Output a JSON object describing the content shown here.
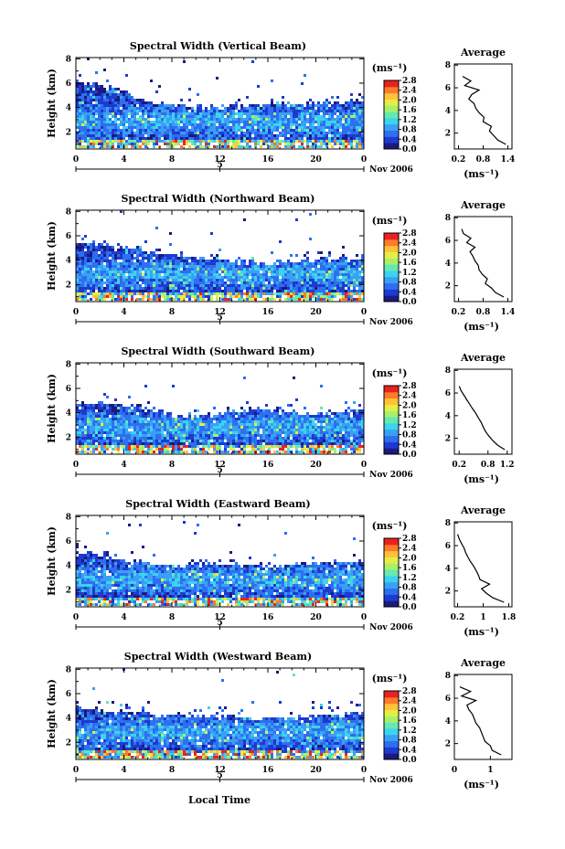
{
  "figure": {
    "xlabel": "Local Time",
    "ylabel": "Height (km)",
    "date_label": "Nov 2006",
    "day_label": "5",
    "colorbar_units": "(ms⁻¹)",
    "avg_title": "Average",
    "avg_units": "(ms⁻¹)",
    "colormap": [
      "#1a1a80",
      "#1e3ad0",
      "#2e6ff0",
      "#3aa0f5",
      "#3cd3ee",
      "#66e8b0",
      "#a8f06a",
      "#e6ee45",
      "#ffc23a",
      "#ff7a2a",
      "#e8231f"
    ],
    "colors": {
      "axis": "#000000",
      "background": "#ffffff"
    }
  },
  "chart_data": [
    {
      "type": "heatmap",
      "title": "Spectral Width (Vertical Beam)",
      "xlabel": "Local Time",
      "ylabel": "Height (km)",
      "x_ticks": [
        "0",
        "4",
        "8",
        "12",
        "16",
        "20",
        "0"
      ],
      "xlim": [
        0,
        24
      ],
      "y_ticks": [
        "2",
        "4",
        "6",
        "8"
      ],
      "ylim": [
        0.6,
        8.1
      ],
      "colorbar": {
        "label": "(ms⁻¹)",
        "ticks": [
          "0.0",
          "0.4",
          "0.8",
          "1.2",
          "1.6",
          "2.0",
          "2.4",
          "2.8"
        ],
        "range": [
          0,
          2.8
        ]
      },
      "top_profile": [
        6.3,
        6.0,
        5.8,
        5.5,
        5.2,
        4.7,
        4.5,
        4.3,
        4.1,
        4.0,
        4.0,
        4.1,
        4.0,
        4.0,
        4.1,
        4.2,
        4.3,
        4.3,
        4.2,
        4.2,
        4.3,
        4.4,
        4.4,
        4.5,
        4.7
      ],
      "average": {
        "title": "Average",
        "xlabel": "(ms⁻¹)",
        "x_ticks": [
          "0.2",
          "0.8",
          "1.4"
        ],
        "xlim": [
          0.1,
          1.5
        ],
        "y_ticks": [
          "2",
          "4",
          "6",
          "8"
        ],
        "ylim": [
          0.6,
          8.1
        ],
        "height": [
          1.0,
          1.4,
          1.8,
          2.2,
          2.6,
          3.0,
          3.4,
          3.8,
          4.2,
          4.6,
          5.0,
          5.4,
          5.8,
          6.2,
          6.6,
          7.0
        ],
        "value": [
          1.35,
          1.15,
          1.05,
          0.95,
          1.0,
          0.8,
          0.82,
          0.7,
          0.62,
          0.58,
          0.45,
          0.52,
          0.7,
          0.35,
          0.5,
          0.3
        ]
      }
    },
    {
      "type": "heatmap",
      "title": "Spectral Width (Northward Beam)",
      "xlabel": "Local Time",
      "ylabel": "Height (km)",
      "x_ticks": [
        "0",
        "4",
        "8",
        "12",
        "16",
        "20",
        "0"
      ],
      "xlim": [
        0,
        24
      ],
      "y_ticks": [
        "2",
        "4",
        "6",
        "8"
      ],
      "ylim": [
        0.6,
        8.1
      ],
      "colorbar": {
        "label": "(ms⁻¹)",
        "ticks": [
          "0.0",
          "0.4",
          "0.8",
          "1.2",
          "1.6",
          "2.0",
          "2.4",
          "2.8"
        ],
        "range": [
          0,
          2.8
        ]
      },
      "top_profile": [
        5.2,
        5.4,
        5.3,
        5.1,
        5.0,
        4.9,
        4.7,
        4.6,
        4.4,
        4.3,
        4.2,
        4.1,
        4.0,
        3.9,
        3.9,
        3.8,
        3.7,
        3.7,
        3.8,
        3.9,
        4.0,
        4.0,
        4.1,
        4.0,
        4.1
      ],
      "average": {
        "title": "Average",
        "xlabel": "(ms⁻¹)",
        "x_ticks": [
          "0.2",
          "0.8",
          "1.4"
        ],
        "xlim": [
          0.1,
          1.5
        ],
        "y_ticks": [
          "2",
          "4",
          "6",
          "8"
        ],
        "ylim": [
          0.6,
          8.1
        ],
        "height": [
          1.0,
          1.4,
          1.8,
          2.2,
          2.6,
          3.0,
          3.4,
          3.8,
          4.2,
          4.6,
          5.0,
          5.4,
          5.8,
          6.2,
          6.6,
          7.0
        ],
        "value": [
          1.3,
          1.1,
          1.0,
          0.85,
          0.9,
          0.78,
          0.7,
          0.68,
          0.6,
          0.55,
          0.48,
          0.6,
          0.4,
          0.5,
          0.32,
          0.28
        ]
      }
    },
    {
      "type": "heatmap",
      "title": "Spectral Width (Southward Beam)",
      "xlabel": "Local Time",
      "ylabel": "Height (km)",
      "x_ticks": [
        "0",
        "4",
        "8",
        "12",
        "16",
        "20",
        "0"
      ],
      "xlim": [
        0,
        24
      ],
      "y_ticks": [
        "2",
        "4",
        "6",
        "8"
      ],
      "ylim": [
        0.6,
        8.1
      ],
      "colorbar": {
        "label": "(ms⁻¹)",
        "ticks": [
          "0.0",
          "0.4",
          "0.8",
          "1.2",
          "1.6",
          "2.0",
          "2.4",
          "2.8"
        ],
        "range": [
          0,
          2.8
        ]
      },
      "top_profile": [
        4.6,
        4.8,
        4.9,
        4.8,
        4.6,
        4.4,
        4.2,
        4.0,
        3.8,
        3.7,
        3.7,
        3.8,
        3.9,
        4.0,
        4.2,
        4.3,
        4.2,
        4.0,
        3.9,
        3.8,
        3.8,
        3.9,
        4.0,
        4.1,
        4.3
      ],
      "average": {
        "title": "Average",
        "xlabel": "(ms⁻¹)",
        "x_ticks": [
          "0.2",
          "0.8",
          "1.2"
        ],
        "xlim": [
          0.1,
          1.3
        ],
        "y_ticks": [
          "2",
          "4",
          "6",
          "8"
        ],
        "ylim": [
          0.6,
          8.1
        ],
        "height": [
          1.0,
          1.4,
          1.8,
          2.2,
          2.6,
          3.0,
          3.4,
          3.8,
          4.2,
          4.6,
          5.0,
          5.4,
          5.8,
          6.2,
          6.6
        ],
        "value": [
          1.15,
          1.0,
          0.9,
          0.82,
          0.75,
          0.7,
          0.66,
          0.6,
          0.55,
          0.48,
          0.42,
          0.36,
          0.3,
          0.24,
          0.2
        ]
      }
    },
    {
      "type": "heatmap",
      "title": "Spectral Width (Eastward Beam)",
      "xlabel": "Local Time",
      "ylabel": "Height (km)",
      "x_ticks": [
        "0",
        "4",
        "8",
        "12",
        "16",
        "20",
        "0"
      ],
      "xlim": [
        0,
        24
      ],
      "y_ticks": [
        "2",
        "4",
        "6",
        "8"
      ],
      "ylim": [
        0.6,
        8.1
      ],
      "colorbar": {
        "label": "(ms⁻¹)",
        "ticks": [
          "0.0",
          "0.4",
          "0.8",
          "1.2",
          "1.6",
          "2.0",
          "2.4",
          "2.8"
        ],
        "range": [
          0,
          2.8
        ]
      },
      "top_profile": [
        5.0,
        5.1,
        4.8,
        4.6,
        4.4,
        4.2,
        4.1,
        4.0,
        3.9,
        3.9,
        4.0,
        4.1,
        4.1,
        4.0,
        4.0,
        4.0,
        3.9,
        3.9,
        4.0,
        4.1,
        4.1,
        4.2,
        4.3,
        4.3,
        4.4
      ],
      "average": {
        "title": "Average",
        "xlabel": "(ms⁻¹)",
        "x_ticks": [
          "0.2",
          "1",
          "1.8"
        ],
        "xlim": [
          0.1,
          1.9
        ],
        "y_ticks": [
          "2",
          "4",
          "6",
          "8"
        ],
        "ylim": [
          0.6,
          8.1
        ],
        "height": [
          1.0,
          1.4,
          1.8,
          2.2,
          2.6,
          3.0,
          3.4,
          3.8,
          4.2,
          4.6,
          5.0,
          5.4,
          5.8,
          6.2,
          6.6,
          7.0
        ],
        "value": [
          1.65,
          1.3,
          1.1,
          0.95,
          1.2,
          0.9,
          0.85,
          0.78,
          0.7,
          0.6,
          0.52,
          0.45,
          0.4,
          0.32,
          0.25,
          0.2
        ]
      }
    },
    {
      "type": "heatmap",
      "title": "Spectral Width (Westward Beam)",
      "xlabel": "Local Time",
      "ylabel": "Height (km)",
      "x_ticks": [
        "0",
        "4",
        "8",
        "12",
        "16",
        "20",
        "0"
      ],
      "xlim": [
        0,
        24
      ],
      "y_ticks": [
        "2",
        "4",
        "6",
        "8"
      ],
      "ylim": [
        0.6,
        8.1
      ],
      "colorbar": {
        "label": "(ms⁻¹)",
        "ticks": [
          "0.0",
          "0.4",
          "0.8",
          "1.2",
          "1.6",
          "2.0",
          "2.4",
          "2.8"
        ],
        "range": [
          0,
          2.8
        ]
      },
      "top_profile": [
        4.8,
        4.7,
        4.6,
        4.5,
        4.5,
        4.4,
        4.3,
        4.2,
        4.1,
        4.0,
        4.1,
        4.2,
        4.2,
        4.1,
        4.0,
        3.9,
        3.9,
        3.9,
        4.0,
        4.0,
        4.1,
        4.2,
        4.2,
        4.3,
        4.4
      ],
      "average": {
        "title": "Average",
        "xlabel": "(ms⁻¹)",
        "x_ticks": [
          "0",
          "1"
        ],
        "xlim": [
          0,
          1.6
        ],
        "y_ticks": [
          "2",
          "4",
          "6",
          "8"
        ],
        "ylim": [
          0.6,
          8.1
        ],
        "height": [
          1.0,
          1.4,
          1.8,
          2.2,
          2.6,
          3.0,
          3.4,
          3.8,
          4.2,
          4.6,
          5.0,
          5.4,
          5.8,
          6.2,
          6.6,
          7.0
        ],
        "value": [
          1.3,
          1.05,
          1.0,
          0.85,
          0.8,
          0.75,
          0.7,
          0.6,
          0.55,
          0.5,
          0.4,
          0.35,
          0.6,
          0.2,
          0.45,
          0.15
        ]
      }
    }
  ]
}
